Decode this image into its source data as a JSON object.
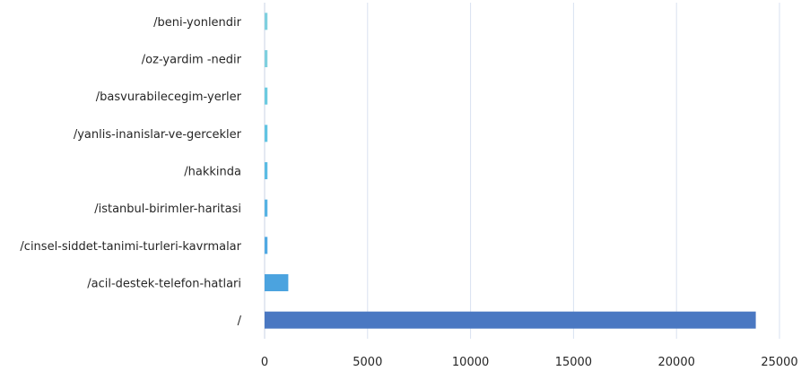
{
  "chart_data": {
    "type": "bar",
    "orientation": "horizontal",
    "categories": [
      "/beni-yonlendir",
      "/oz-yardim -nedir",
      "/basvurabilecegim-yerler",
      "/yanlis-inanislar-ve-gercekler",
      "/hakkinda",
      "/istanbul-birimler-haritasi",
      "/cinsel-siddet-tanimi-turleri-kavrmalar",
      "/acil-destek-telefon-hatlari",
      "/"
    ],
    "values": [
      140,
      140,
      140,
      140,
      140,
      140,
      140,
      1150,
      23850
    ],
    "bar_colors": [
      "#7fd0df",
      "#7fd0df",
      "#6ccbe0",
      "#62c4e2",
      "#5bbce3",
      "#56b3e3",
      "#51a9e2",
      "#4ba3df",
      "#4a78c2"
    ],
    "xlim": [
      0,
      25000
    ],
    "xticks": [
      "0",
      "5000",
      "10000",
      "15000",
      "20000",
      "25000"
    ],
    "xtick_values": [
      0,
      5000,
      10000,
      15000,
      20000,
      25000
    ],
    "grid": true,
    "grid_color": "#d9e2f0",
    "axis_color": "#c8d3e6",
    "title": "",
    "xlabel": "",
    "ylabel": ""
  }
}
